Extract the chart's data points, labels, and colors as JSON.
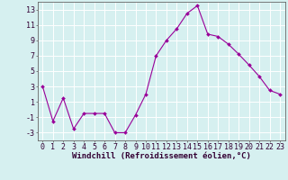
{
  "x": [
    0,
    1,
    2,
    3,
    4,
    5,
    6,
    7,
    8,
    9,
    10,
    11,
    12,
    13,
    14,
    15,
    16,
    17,
    18,
    19,
    20,
    21,
    22,
    23
  ],
  "y": [
    3.0,
    -1.5,
    1.5,
    -2.5,
    -0.5,
    -0.5,
    -0.5,
    -3.0,
    -3.0,
    -0.7,
    2.0,
    7.0,
    9.0,
    10.5,
    12.5,
    13.5,
    9.8,
    9.5,
    8.5,
    7.2,
    5.8,
    4.3,
    2.5,
    2.0
  ],
  "line_color": "#990099",
  "marker": "D",
  "marker_size": 2.0,
  "bg_color": "#d6f0f0",
  "grid_color": "#b8dada",
  "xlabel": "Windchill (Refroidissement éolien,°C)",
  "xlabel_fontsize": 6.5,
  "tick_fontsize": 6.0,
  "ylim": [
    -4,
    14
  ],
  "yticks": [
    -3,
    -1,
    1,
    3,
    5,
    7,
    9,
    11,
    13
  ],
  "xticks": [
    0,
    1,
    2,
    3,
    4,
    5,
    6,
    7,
    8,
    9,
    10,
    11,
    12,
    13,
    14,
    15,
    16,
    17,
    18,
    19,
    20,
    21,
    22,
    23
  ],
  "xlim": [
    -0.5,
    23.5
  ]
}
